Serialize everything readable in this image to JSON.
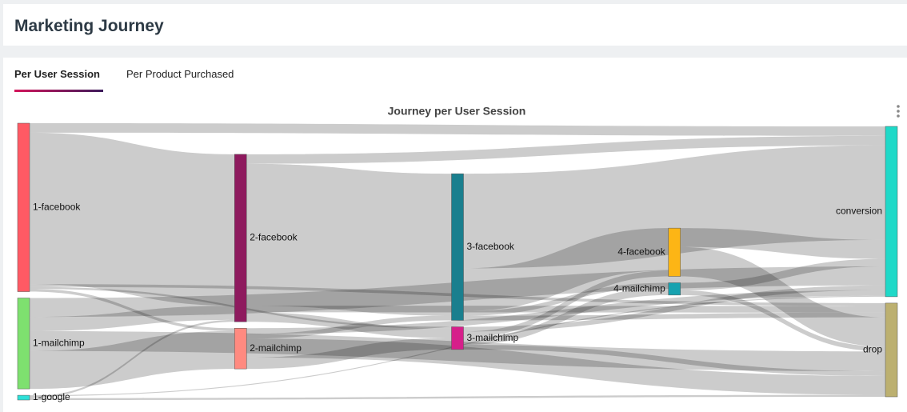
{
  "header": {
    "title": "Marketing Journey"
  },
  "tabs": [
    "Per User Session",
    "Per Product Purchased"
  ],
  "chart_data": {
    "type": "sankey",
    "title": "Journey per User Session",
    "nodes": [
      {
        "label": "1-facebook",
        "color": "#ff5a64"
      },
      {
        "label": "1-mailchimp",
        "color": "#7ee06f"
      },
      {
        "label": "1-google",
        "color": "#2de0d8"
      },
      {
        "label": "2-facebook",
        "color": "#8e1a5e"
      },
      {
        "label": "2-mailchimp",
        "color": "#ff8a80"
      },
      {
        "label": "3-facebook",
        "color": "#1a7f8e"
      },
      {
        "label": "3-mailchimp",
        "color": "#d61f8a"
      },
      {
        "label": "4-facebook",
        "color": "#fdb515"
      },
      {
        "label": "4-mailchimp",
        "color": "#17a2b0"
      },
      {
        "label": "conversion",
        "color": "#1fd9c8"
      },
      {
        "label": "drop",
        "color": "#bcb070"
      }
    ],
    "links": [
      {
        "source": "1-facebook",
        "target": "conversion",
        "value": 10
      },
      {
        "source": "1-facebook",
        "target": "2-facebook",
        "value": 160
      },
      {
        "source": "1-facebook",
        "target": "2-mailchimp",
        "value": 3
      },
      {
        "source": "1-facebook",
        "target": "3-mailchimp",
        "value": 2
      },
      {
        "source": "1-facebook",
        "target": "drop",
        "value": 3
      },
      {
        "source": "1-mailchimp",
        "target": "2-facebook",
        "value": 15
      },
      {
        "source": "1-mailchimp",
        "target": "2-mailchimp",
        "value": 40
      },
      {
        "source": "1-mailchimp",
        "target": "conversion",
        "value": 20
      },
      {
        "source": "1-mailchimp",
        "target": "drop",
        "value": 21
      },
      {
        "source": "1-google",
        "target": "2-facebook",
        "value": 2
      },
      {
        "source": "1-google",
        "target": "conversion",
        "value": 1
      },
      {
        "source": "1-google",
        "target": "drop",
        "value": 2
      },
      {
        "source": "2-facebook",
        "target": "3-facebook",
        "value": 150
      },
      {
        "source": "2-facebook",
        "target": "conversion",
        "value": 10
      },
      {
        "source": "2-facebook",
        "target": "3-mailchimp",
        "value": 10
      },
      {
        "source": "2-facebook",
        "target": "drop",
        "value": 7
      },
      {
        "source": "2-mailchimp",
        "target": "3-facebook",
        "value": 5
      },
      {
        "source": "2-mailchimp",
        "target": "3-mailchimp",
        "value": 12
      },
      {
        "source": "2-mailchimp",
        "target": "conversion",
        "value": 6
      },
      {
        "source": "2-mailchimp",
        "target": "drop",
        "value": 20
      },
      {
        "source": "3-facebook",
        "target": "conversion",
        "value": 100
      },
      {
        "source": "3-facebook",
        "target": "4-facebook",
        "value": 45
      },
      {
        "source": "3-facebook",
        "target": "4-mailchimp",
        "value": 5
      },
      {
        "source": "3-facebook",
        "target": "drop",
        "value": 5
      },
      {
        "source": "3-mailchimp",
        "target": "4-facebook",
        "value": 6
      },
      {
        "source": "3-mailchimp",
        "target": "4-mailchimp",
        "value": 8
      },
      {
        "source": "3-mailchimp",
        "target": "conversion",
        "value": 5
      },
      {
        "source": "3-mailchimp",
        "target": "drop",
        "value": 5
      },
      {
        "source": "4-facebook",
        "target": "conversion",
        "value": 20
      },
      {
        "source": "4-facebook",
        "target": "drop",
        "value": 31
      },
      {
        "source": "4-mailchimp",
        "target": "conversion",
        "value": 8
      },
      {
        "source": "4-mailchimp",
        "target": "drop",
        "value": 5
      }
    ]
  }
}
